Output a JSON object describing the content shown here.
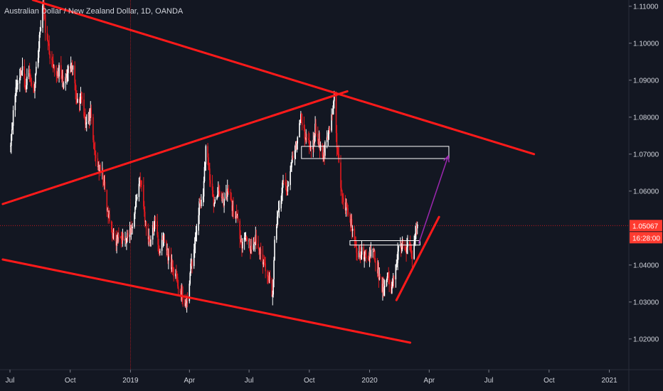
{
  "chart_title": "Australian Dollar / New Zealand Dollar, 1D, OANDA",
  "colors": {
    "background": "#131722",
    "candle_up": "#ffffff",
    "candle_down": "#e0191e",
    "trendline": "#ff1a1a",
    "projection_arrow": "#9c27b0",
    "zone_border": "#ffffff",
    "axis_text": "#d1d4dc",
    "price_label_bg": "#ff3b30",
    "crosshair": "#e0191e"
  },
  "chart_data": {
    "type": "candlestick",
    "symbol": "AUDNZD",
    "timeframe": "1D",
    "x_axis": {
      "type": "date",
      "range": [
        "2018-07-01",
        "2021-02-15"
      ],
      "tick_labels": [
        {
          "date": "2018-07-01",
          "label": "Jul"
        },
        {
          "date": "2018-10-01",
          "label": "Oct"
        },
        {
          "date": "2019-01-01",
          "label": "2019"
        },
        {
          "date": "2019-04-01",
          "label": "Apr"
        },
        {
          "date": "2019-07-01",
          "label": "Jul"
        },
        {
          "date": "2019-10-01",
          "label": "Oct"
        },
        {
          "date": "2020-01-01",
          "label": "2020"
        },
        {
          "date": "2020-04-01",
          "label": "Apr"
        },
        {
          "date": "2020-07-01",
          "label": "Jul"
        },
        {
          "date": "2020-10-01",
          "label": "Oct"
        },
        {
          "date": "2021-01-01",
          "label": "2021"
        }
      ]
    },
    "y_axis": {
      "range": [
        1.0115,
        1.1115
      ],
      "tick_values": [
        1.02,
        1.03,
        1.04,
        1.06,
        1.07,
        1.08,
        1.09,
        1.1,
        1.11
      ],
      "tick_labels": [
        "1.02000",
        "1.03000",
        "1.04000",
        "1.06000",
        "1.07000",
        "1.08000",
        "1.09000",
        "1.10000",
        "1.11000"
      ]
    },
    "price_path": [
      [
        "2018-07-01",
        1.072
      ],
      [
        "2018-07-05",
        1.079
      ],
      [
        "2018-07-10",
        1.088
      ],
      [
        "2018-07-16",
        1.0915
      ],
      [
        "2018-07-20",
        1.0935
      ],
      [
        "2018-07-24",
        1.088
      ],
      [
        "2018-07-30",
        1.0925
      ],
      [
        "2018-08-06",
        1.087
      ],
      [
        "2018-08-14",
        1.099
      ],
      [
        "2018-08-18",
        1.1075
      ],
      [
        "2018-08-21",
        1.111
      ],
      [
        "2018-08-25",
        1.102
      ],
      [
        "2018-09-01",
        1.096
      ],
      [
        "2018-09-08",
        1.091
      ],
      [
        "2018-09-15",
        1.093
      ],
      [
        "2018-09-22",
        1.088
      ],
      [
        "2018-09-29",
        1.0935
      ],
      [
        "2018-10-05",
        1.093
      ],
      [
        "2018-10-12",
        1.084
      ],
      [
        "2018-10-18",
        1.086
      ],
      [
        "2018-10-25",
        1.078
      ],
      [
        "2018-11-01",
        1.081
      ],
      [
        "2018-11-07",
        1.07
      ],
      [
        "2018-11-14",
        1.066
      ],
      [
        "2018-11-20",
        1.064
      ],
      [
        "2018-11-27",
        1.054
      ],
      [
        "2018-12-04",
        1.049
      ],
      [
        "2018-12-10",
        1.046
      ],
      [
        "2018-12-17",
        1.049
      ],
      [
        "2018-12-24",
        1.046
      ],
      [
        "2019-01-03",
        1.05
      ],
      [
        "2019-01-10",
        1.058
      ],
      [
        "2019-01-16",
        1.064
      ],
      [
        "2019-01-24",
        1.051
      ],
      [
        "2019-01-31",
        1.046
      ],
      [
        "2019-02-07",
        1.052
      ],
      [
        "2019-02-14",
        1.044
      ],
      [
        "2019-02-21",
        1.047
      ],
      [
        "2019-02-28",
        1.042
      ],
      [
        "2019-03-07",
        1.039
      ],
      [
        "2019-03-14",
        1.035
      ],
      [
        "2019-03-21",
        1.031
      ],
      [
        "2019-03-28",
        1.029
      ],
      [
        "2019-04-02",
        1.038
      ],
      [
        "2019-04-09",
        1.045
      ],
      [
        "2019-04-16",
        1.056
      ],
      [
        "2019-04-22",
        1.059
      ],
      [
        "2019-04-26",
        1.072
      ],
      [
        "2019-05-02",
        1.064
      ],
      [
        "2019-05-09",
        1.056
      ],
      [
        "2019-05-16",
        1.061
      ],
      [
        "2019-05-23",
        1.056
      ],
      [
        "2019-05-30",
        1.06
      ],
      [
        "2019-06-06",
        1.055
      ],
      [
        "2019-06-13",
        1.052
      ],
      [
        "2019-06-20",
        1.046
      ],
      [
        "2019-06-27",
        1.048
      ],
      [
        "2019-07-04",
        1.044
      ],
      [
        "2019-07-11",
        1.047
      ],
      [
        "2019-07-18",
        1.043
      ],
      [
        "2019-07-25",
        1.04
      ],
      [
        "2019-07-31",
        1.037
      ],
      [
        "2019-08-06",
        1.032
      ],
      [
        "2019-08-10",
        1.05
      ],
      [
        "2019-08-15",
        1.054
      ],
      [
        "2019-08-22",
        1.062
      ],
      [
        "2019-08-29",
        1.06
      ],
      [
        "2019-09-05",
        1.069
      ],
      [
        "2019-09-12",
        1.073
      ],
      [
        "2019-09-18",
        1.08
      ],
      [
        "2019-09-22",
        1.076
      ],
      [
        "2019-09-28",
        1.074
      ],
      [
        "2019-10-05",
        1.07
      ],
      [
        "2019-10-10",
        1.077
      ],
      [
        "2019-10-16",
        1.073
      ],
      [
        "2019-10-22",
        1.069
      ],
      [
        "2019-10-28",
        1.075
      ],
      [
        "2019-11-03",
        1.079
      ],
      [
        "2019-11-08",
        1.085
      ],
      [
        "2019-11-12",
        1.072
      ],
      [
        "2019-11-18",
        1.062
      ],
      [
        "2019-11-25",
        1.056
      ],
      [
        "2019-12-02",
        1.053
      ],
      [
        "2019-12-09",
        1.046
      ],
      [
        "2019-12-14",
        1.042
      ],
      [
        "2019-12-21",
        1.044
      ],
      [
        "2019-12-28",
        1.04
      ],
      [
        "2020-01-04",
        1.045
      ],
      [
        "2020-01-10",
        1.041
      ],
      [
        "2020-01-16",
        1.036
      ],
      [
        "2020-01-22",
        1.033
      ],
      [
        "2020-01-28",
        1.038
      ],
      [
        "2020-02-03",
        1.032
      ],
      [
        "2020-02-08",
        1.038
      ],
      [
        "2020-02-14",
        1.044
      ],
      [
        "2020-02-20",
        1.046
      ],
      [
        "2020-02-26",
        1.043
      ],
      [
        "2020-03-02",
        1.047
      ],
      [
        "2020-03-06",
        1.042
      ],
      [
        "2020-03-10",
        1.048
      ],
      [
        "2020-03-14",
        1.051
      ]
    ],
    "current_price": {
      "value": 1.05067,
      "label": "1.05067",
      "countdown": "16:28:00"
    },
    "crosshair": {
      "date": "2019-01-01",
      "price": 1.05067
    },
    "annotations": {
      "trendlines": [
        {
          "from": [
            "2018-08-05",
            1.1117
          ],
          "to": [
            "2020-09-08",
            1.07
          ]
        },
        {
          "from": [
            "2018-06-20",
            1.0565
          ],
          "to": [
            "2019-11-28",
            1.087
          ]
        },
        {
          "from": [
            "2018-06-20",
            1.0415
          ],
          "to": [
            "2020-03-03",
            1.019
          ]
        },
        {
          "from": [
            "2020-02-11",
            1.0305
          ],
          "to": [
            "2020-04-16",
            1.053
          ]
        }
      ],
      "zones": [
        {
          "from": "2019-09-19",
          "to": "2020-05-01",
          "top": 1.0721,
          "bottom": 1.0688
        },
        {
          "from": "2019-12-02",
          "to": "2020-03-18",
          "top": 1.0466,
          "bottom": 1.0454
        }
      ],
      "projection_arrow": {
        "from": [
          "2020-03-16",
          1.0458
        ],
        "to": [
          "2020-04-30",
          1.0695
        ]
      }
    }
  }
}
